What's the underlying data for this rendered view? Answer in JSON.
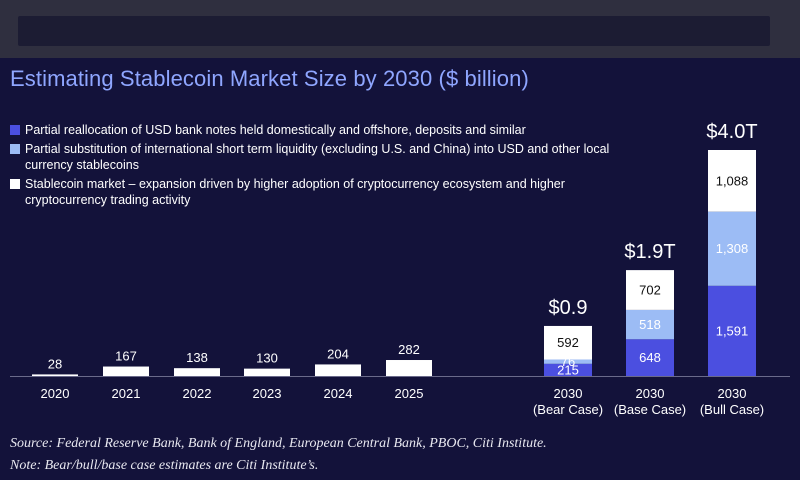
{
  "chart_data": {
    "type": "bar",
    "title": "Estimating Stablecoin Market Size by 2030 ($ billion)",
    "legend": [
      {
        "label": "Partial reallocation of USD bank notes held domestically and offshore, deposits and similar",
        "color": "#4b4fe0"
      },
      {
        "label": "Partial substitution of international short term liquidity (excluding U.S. and China) into USD and other local currency stablecoins",
        "color": "#9cbcf5"
      },
      {
        "label": "Stablecoin market – expansion driven by higher adoption of cryptocurrency ecosystem and higher cryptocurrency trading activity",
        "color": "#ffffff"
      }
    ],
    "historical": {
      "categories": [
        "2020",
        "2021",
        "2022",
        "2023",
        "2024",
        "2025"
      ],
      "values": [
        28,
        167,
        138,
        130,
        204,
        282
      ],
      "labels": [
        "28",
        "167",
        "138",
        "130",
        "204",
        "282"
      ]
    },
    "projections": [
      {
        "category": "2030",
        "sublabel": "(Bear Case)",
        "total_label": "$0.9",
        "values": [
          215,
          76,
          592
        ],
        "labels": [
          "215",
          "76",
          "592"
        ]
      },
      {
        "category": "2030",
        "sublabel": "(Base Case)",
        "total_label": "$1.9T",
        "values": [
          648,
          518,
          702
        ],
        "labels": [
          "648",
          "518",
          "702"
        ]
      },
      {
        "category": "2030",
        "sublabel": "(Bull Case)",
        "total_label": "$4.0T",
        "values": [
          1591,
          1308,
          1088
        ],
        "labels": [
          "1,591",
          "1,308",
          "1,088"
        ]
      }
    ],
    "ylim": [
      0,
      4000
    ],
    "grid": false
  },
  "footer": {
    "source": "Source: Federal Reserve Bank, Bank of England, European Central Bank, PBOC, Citi Institute.",
    "note": "Note: Bear/bull/base case estimates are Citi Institute’s."
  }
}
